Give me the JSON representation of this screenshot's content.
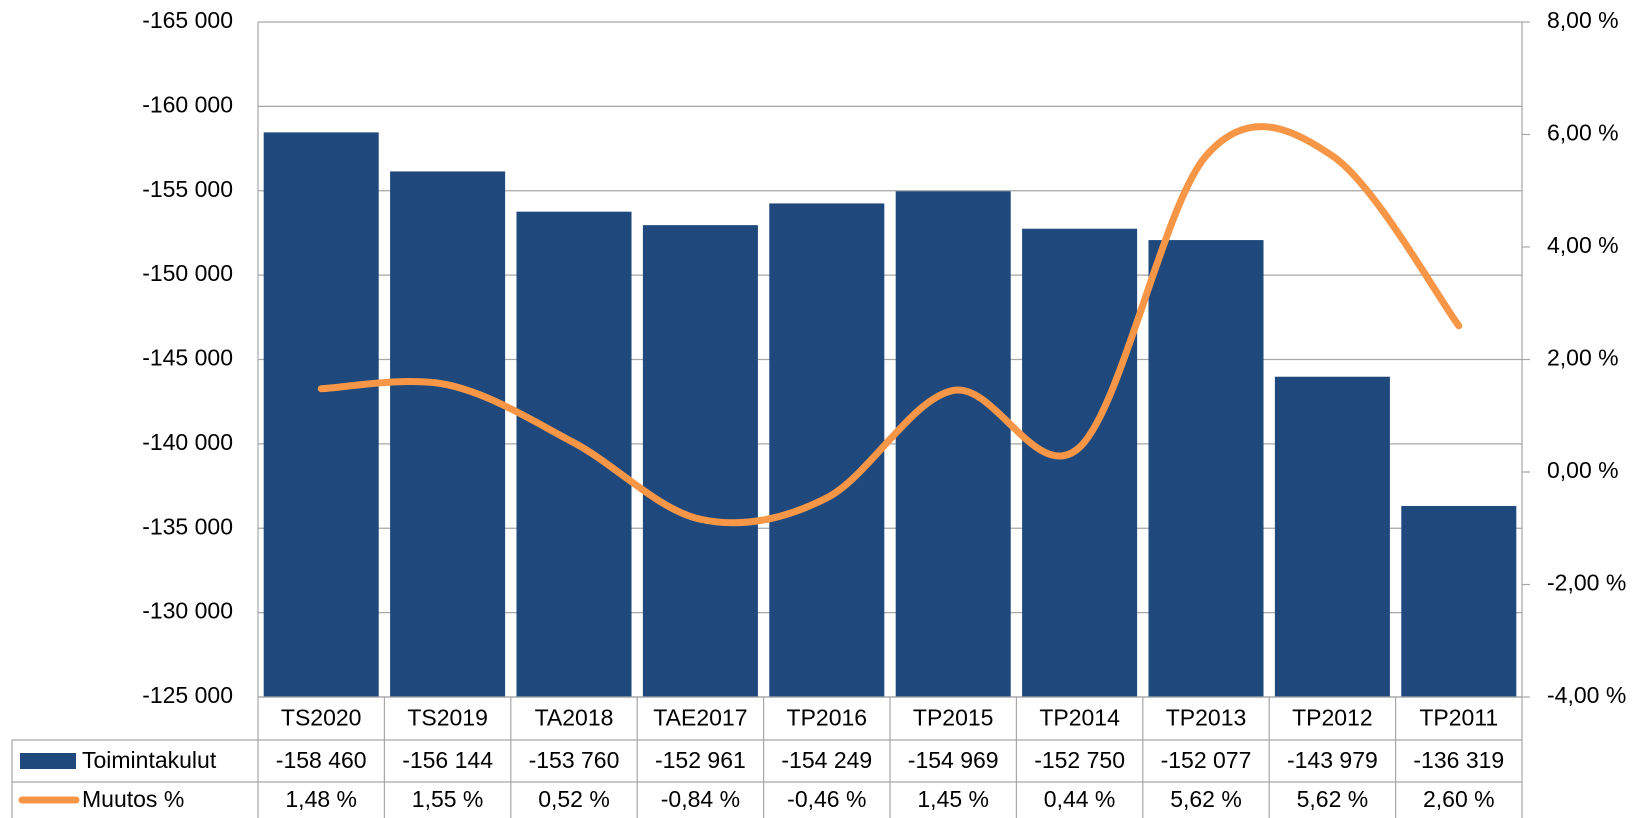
{
  "chart_data": {
    "type": "bar-line",
    "categories": [
      "TS2020",
      "TS2019",
      "TA2018",
      "TAE2017",
      "TP2016",
      "TP2015",
      "TP2014",
      "TP2013",
      "TP2012",
      "TP2011"
    ],
    "series": [
      {
        "name": "Toimintakulut",
        "type": "bar",
        "color": "#1f497d",
        "values": [
          -158460,
          -156144,
          -153760,
          -152961,
          -154249,
          -154969,
          -152750,
          -152077,
          -143979,
          -136319
        ],
        "value_labels": [
          "-158 460",
          "-156 144",
          "-153 760",
          "-152 961",
          "-154 249",
          "-154 969",
          "-152 750",
          "-152 077",
          "-143 979",
          "-136 319"
        ]
      },
      {
        "name": "Muutos %",
        "type": "line",
        "axis": "y2",
        "color": "#f79646",
        "values": [
          1.48,
          1.55,
          0.52,
          -0.84,
          -0.46,
          1.45,
          0.44,
          5.62,
          5.62,
          2.6
        ],
        "value_labels": [
          "1,48 %",
          "1,55 %",
          "0,52 %",
          "-0,84 %",
          "-0,46 %",
          "1,45 %",
          "0,44 %",
          "5,62 %",
          "5,62 %",
          "2,60 %"
        ]
      }
    ],
    "ylim": [
      -125000,
      -165000
    ],
    "yticks": [
      {
        "value": -165000,
        "label": "-165 000"
      },
      {
        "value": -160000,
        "label": "-160 000"
      },
      {
        "value": -155000,
        "label": "-155 000"
      },
      {
        "value": -150000,
        "label": "-150 000"
      },
      {
        "value": -145000,
        "label": "-145 000"
      },
      {
        "value": -140000,
        "label": "-140 000"
      },
      {
        "value": -135000,
        "label": "-135 000"
      },
      {
        "value": -130000,
        "label": "-130 000"
      },
      {
        "value": -125000,
        "label": "-125 000"
      }
    ],
    "y2lim": [
      -4,
      8
    ],
    "y2ticks": [
      {
        "value": -4,
        "label": "-4,00 %"
      },
      {
        "value": -2,
        "label": "-2,00 %"
      },
      {
        "value": 0,
        "label": "0,00 %"
      },
      {
        "value": 2,
        "label": "2,00 %"
      },
      {
        "value": 4,
        "label": "4,00 %"
      },
      {
        "value": 6,
        "label": "6,00 %"
      },
      {
        "value": 8,
        "label": "8,00 %"
      }
    ],
    "grid": true,
    "legend": "table"
  }
}
